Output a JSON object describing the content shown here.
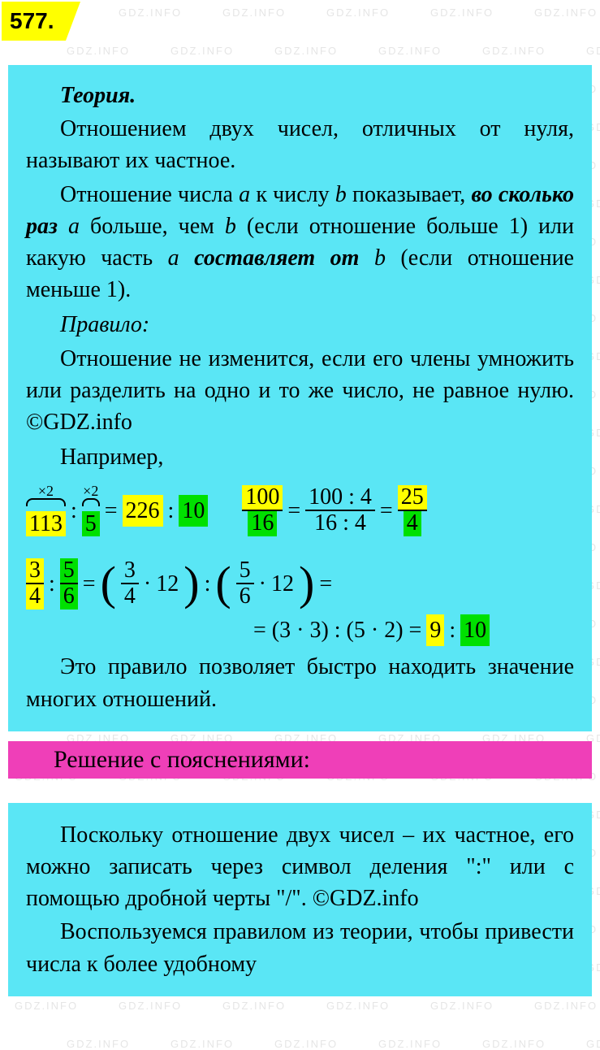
{
  "watermark_text": "GDZ.INFO",
  "watermark_color": "rgba(150,150,150,0.25)",
  "watermark_fontsize": 13,
  "badge": {
    "number": "577.",
    "bg": "#ffff00",
    "fontsize": 28
  },
  "theory": {
    "bg": "#5ae6f5",
    "title": "Теория.",
    "p1a": "Отношением двух чисел, отличных от нуля, называют их частное.",
    "p2_pre": "Отношение числа ",
    "var_a": "a",
    "p2_mid1": " к числу ",
    "var_b": "b",
    "p2_mid2": " показывает, ",
    "bold1": "во сколько раз",
    "p2_mid3": " ",
    "p2_mid4": " больше, чем ",
    "p2_mid5": " (если отношение больше 1) или какую часть ",
    "bold2": "составляет от",
    "p2_end": " (если отношение меньше 1).",
    "rule_label": "Правило:",
    "rule_text": "Отношение не изменится, если его члены умножить или разделить на одно и то же число, не равное нулю. ©GDZ.info",
    "example_label": "Например,",
    "ex1": {
      "mult_label1": "×2",
      "mult_label2": "×2",
      "a": "113",
      "b": "5",
      "ra": "226",
      "rb": "10",
      "hl_a": "#ffff00",
      "hl_b": "#00e000",
      "hl_ra": "#ffff00",
      "hl_rb": "#00e000"
    },
    "ex2": {
      "num1": "100",
      "den1": "16",
      "num2": "100 : 4",
      "den2": "16 : 4",
      "num3": "25",
      "den3": "4",
      "hl_n1": "#ffff00",
      "hl_d1": "#00e000",
      "hl_n3": "#ffff00",
      "hl_d3": "#00e000"
    },
    "ex3": {
      "f1_num": "3",
      "f1_den": "4",
      "f2_num": "5",
      "f2_den": "6",
      "mul": "12",
      "hl_f1n": "#ffff00",
      "hl_f1d": "#ffff00",
      "hl_f2n": "#00e000",
      "hl_f2d": "#00e000"
    },
    "ex3b": {
      "text": "= (3 · 3) : (5 · 2) = ",
      "r1": "9",
      "r2": "10",
      "hl_r1": "#ffff00",
      "hl_r2": "#00e000"
    },
    "closing": "Это правило позволяет быстро находить значение многих отношений."
  },
  "solution": {
    "header": "Решение с пояснениями:",
    "header_bg": "#ef3fb8",
    "bg": "#5ae6f5",
    "p1": "Поскольку отношение двух чисел – их частное, его можно записать через символ деления \":\" или с помощью дробной черты \"/\". ©GDZ.info",
    "p2": "Воспользуемся правилом из теории, чтобы привести числа к более удобному"
  },
  "colors": {
    "yellow": "#ffff00",
    "green": "#00e000",
    "cyan": "#5ae6f5",
    "pink": "#ef3fb8",
    "text": "#000000"
  },
  "typography": {
    "body_fontsize": 28,
    "body_family": "Georgia, Times New Roman, serif",
    "badge_family": "Arial, sans-serif"
  }
}
